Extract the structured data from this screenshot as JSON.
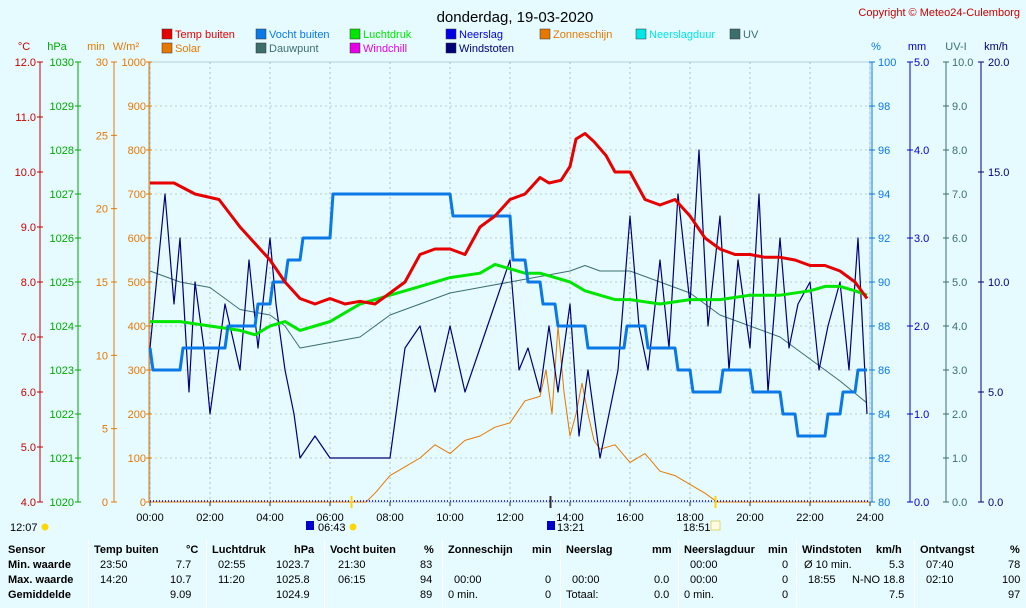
{
  "title": "donderdag, 19-03-2020",
  "copyright": "Copyright © Meteo24-Culemborg",
  "colors": {
    "temp": "#e60000",
    "humidity": "#0a78e6",
    "pressure": "#00e600",
    "rain": "#0000e6",
    "sunshine": "#e67800",
    "rainduration": "#00e6e6",
    "uv": "#3c6e6e",
    "solar": "#e67800",
    "dewpoint": "#3c6e6e",
    "windchill": "#e600e6",
    "gust": "#000078"
  },
  "legend": [
    {
      "label": "Temp buiten",
      "color": "#e60000"
    },
    {
      "label": "Vocht buiten",
      "color": "#0a78e6"
    },
    {
      "label": "Luchtdruk",
      "color": "#00e600"
    },
    {
      "label": "Neerslag",
      "color": "#0000e6"
    },
    {
      "label": "Zonneschijn",
      "color": "#e67800"
    },
    {
      "label": "Neerslagduur",
      "color": "#00e6e6"
    },
    {
      "label": "UV",
      "color": "#3c6e6e"
    },
    {
      "label": "Solar",
      "color": "#e67800"
    },
    {
      "label": "Dauwpunt",
      "color": "#3c6e6e"
    },
    {
      "label": "Windchill",
      "color": "#e600e6"
    },
    {
      "label": "Windstoten",
      "color": "#000078"
    }
  ],
  "axes": {
    "left_units": [
      "°C",
      "hPa",
      "min",
      "W/m²"
    ],
    "right_units": [
      "%",
      "mm",
      "UV-I",
      "km/h"
    ],
    "temp_ticks": [
      "4.0",
      "5.0",
      "6.0",
      "7.0",
      "8.0",
      "9.0",
      "10.0",
      "11.0",
      "12.0"
    ],
    "hpa_ticks": [
      "1020",
      "1021",
      "1022",
      "1023",
      "1024",
      "1025",
      "1026",
      "1027",
      "1028",
      "1029",
      "1030"
    ],
    "min_ticks": [
      "0",
      "5",
      "10",
      "15",
      "20",
      "25",
      "30"
    ],
    "solar_ticks": [
      "0",
      "100",
      "200",
      "300",
      "400",
      "500",
      "600",
      "700",
      "800",
      "900",
      "1000"
    ],
    "hum_ticks": [
      "80",
      "82",
      "84",
      "86",
      "88",
      "90",
      "92",
      "94",
      "96",
      "98",
      "100"
    ],
    "mm_ticks": [
      "0.0",
      "1.0",
      "2.0",
      "3.0",
      "4.0",
      "5.0"
    ],
    "uv_ticks": [
      "0.0",
      "1.0",
      "2.0",
      "3.0",
      "4.0",
      "5.0",
      "6.0",
      "7.0",
      "8.0",
      "9.0",
      "10.0"
    ],
    "kmh_ticks": [
      "0.0",
      "5.0",
      "10.0",
      "15.0",
      "20.0"
    ],
    "time_ticks": [
      "00:00",
      "02:00",
      "04:00",
      "06:00",
      "08:00",
      "10:00",
      "12:00",
      "14:00",
      "16:00",
      "18:00",
      "20:00",
      "22:00",
      "24:00"
    ]
  },
  "markers": {
    "now": "12:07",
    "sunrise": "06:43",
    "noon": "13:21",
    "sunset": "18:51"
  },
  "chart_data": {
    "type": "line",
    "x_unit": "hours",
    "xlim": [
      0,
      24
    ],
    "series": [
      {
        "name": "Temp buiten",
        "unit": "°C",
        "ylim": [
          4,
          12
        ],
        "x": [
          0,
          0.8,
          1.5,
          2.3,
          3,
          3.5,
          4,
          4.5,
          5,
          5.5,
          6,
          6.5,
          7,
          7.5,
          8,
          8.5,
          9,
          9.5,
          10,
          10.5,
          11,
          11.5,
          12,
          12.5,
          13,
          13.3,
          13.7,
          14,
          14.2,
          14.5,
          14.8,
          15.2,
          15.5,
          16,
          16.5,
          17,
          17.5,
          18,
          18.5,
          19,
          19.5,
          20,
          20.5,
          21,
          21.5,
          22,
          22.5,
          23,
          23.5,
          23.9
        ],
        "y": [
          9.8,
          9.8,
          9.6,
          9.5,
          9.0,
          8.7,
          8.4,
          8.0,
          7.7,
          7.6,
          7.7,
          7.6,
          7.65,
          7.6,
          7.8,
          8.0,
          8.5,
          8.6,
          8.6,
          8.5,
          9.0,
          9.2,
          9.5,
          9.6,
          9.9,
          9.8,
          9.85,
          10.1,
          10.6,
          10.7,
          10.55,
          10.3,
          10.0,
          10.0,
          9.5,
          9.4,
          9.5,
          9.2,
          8.8,
          8.6,
          8.5,
          8.5,
          8.45,
          8.45,
          8.4,
          8.3,
          8.3,
          8.2,
          8.0,
          7.7
        ]
      },
      {
        "name": "Vocht buiten",
        "unit": "%",
        "ylim": [
          80,
          100
        ],
        "x": [
          0,
          0.1,
          0.2,
          1.0,
          1.1,
          2.5,
          2.6,
          3.5,
          3.6,
          4.0,
          4.1,
          4.5,
          4.6,
          5.0,
          5.1,
          6.0,
          6.1,
          7.0,
          7.1,
          8.0,
          9.0,
          10.0,
          10.1,
          11.0,
          11.1,
          12.0,
          12.1,
          12.5,
          12.6,
          13.0,
          13.1,
          13.5,
          13.6,
          14.0,
          14.1,
          14.5,
          14.6,
          15.0,
          15.1,
          15.8,
          15.9,
          16.5,
          16.6,
          17.5,
          17.6,
          18.0,
          18.1,
          19.0,
          19.1,
          20.0,
          20.1,
          21.0,
          21.1,
          21.5,
          21.6,
          22.5,
          22.6,
          23.0,
          23.1,
          23.5,
          23.6,
          23.9
        ],
        "y": [
          87,
          86,
          86,
          86,
          87,
          87,
          88,
          88,
          89,
          89,
          90,
          90,
          91,
          91,
          92,
          92,
          94,
          94,
          94,
          94,
          94,
          94,
          93,
          93,
          93,
          93,
          91,
          91,
          90,
          90,
          89,
          89,
          88,
          88,
          88,
          88,
          87,
          87,
          87,
          87,
          88,
          88,
          87,
          87,
          86,
          86,
          85,
          85,
          86,
          86,
          85,
          85,
          84,
          84,
          83,
          83,
          84,
          84,
          85,
          85,
          86,
          86
        ]
      },
      {
        "name": "Luchtdruk",
        "unit": "hPa",
        "ylim": [
          1020,
          1030
        ],
        "x": [
          0,
          1,
          2,
          3,
          3.5,
          4,
          4.5,
          5,
          5.5,
          6,
          7,
          8,
          9,
          10,
          11,
          11.5,
          12,
          12.5,
          13,
          13.5,
          14,
          14.5,
          15,
          15.5,
          16,
          17,
          18,
          19,
          20,
          21,
          22,
          22.5,
          23,
          23.5,
          23.9
        ],
        "y": [
          1024.1,
          1024.1,
          1024.0,
          1023.9,
          1023.8,
          1024.0,
          1024.1,
          1023.9,
          1024.0,
          1024.1,
          1024.5,
          1024.7,
          1024.9,
          1025.1,
          1025.2,
          1025.4,
          1025.3,
          1025.2,
          1025.2,
          1025.1,
          1025.0,
          1024.8,
          1024.7,
          1024.6,
          1024.6,
          1024.5,
          1024.6,
          1024.6,
          1024.7,
          1024.7,
          1024.8,
          1024.9,
          1024.9,
          1024.8,
          1024.7
        ]
      },
      {
        "name": "Windstoten",
        "unit": "km/h",
        "ylim": [
          0,
          20
        ],
        "x": [
          0,
          0.5,
          0.8,
          1.0,
          1.3,
          1.5,
          1.8,
          2.0,
          2.5,
          3.0,
          3.3,
          3.6,
          4.0,
          4.2,
          4.5,
          4.8,
          5.0,
          5.5,
          6.0,
          6.5,
          7.0,
          7.5,
          8.0,
          8.5,
          9.0,
          9.5,
          10.0,
          10.5,
          11.0,
          11.5,
          12.0,
          12.3,
          12.6,
          13.0,
          13.3,
          13.6,
          14.0,
          14.3,
          14.6,
          15.0,
          15.3,
          15.6,
          16.0,
          16.3,
          16.6,
          17.0,
          17.3,
          17.6,
          18.0,
          18.3,
          18.6,
          19.0,
          19.3,
          19.6,
          20.0,
          20.3,
          20.6,
          21.0,
          21.3,
          21.6,
          22.0,
          22.3,
          22.6,
          23.0,
          23.3,
          23.6,
          23.9
        ],
        "y": [
          7,
          14,
          9,
          12,
          5,
          10,
          7,
          4,
          9,
          6,
          11,
          7,
          12,
          9,
          6,
          4,
          2,
          3,
          2,
          2,
          2,
          2,
          2,
          7,
          8,
          5,
          8,
          5,
          7,
          9,
          11,
          6,
          7,
          5,
          8,
          5,
          9,
          3,
          6,
          2,
          4,
          6,
          13,
          8,
          6,
          11,
          7,
          14,
          9,
          16,
          8,
          13,
          6,
          11,
          7,
          14,
          5,
          12,
          7,
          9,
          10,
          6,
          8,
          10,
          6,
          12,
          4
        ]
      },
      {
        "name": "Solar",
        "unit": "W/m²",
        "ylim": [
          0,
          1000
        ],
        "x": [
          0,
          7.2,
          7.5,
          8,
          8.5,
          9,
          9.5,
          10,
          10.5,
          11,
          11.5,
          12,
          12.5,
          13,
          13.2,
          13.4,
          13.6,
          13.8,
          14,
          14.2,
          14.4,
          14.6,
          14.8,
          15,
          15.5,
          16,
          16.5,
          17,
          17.5,
          18,
          18.5,
          18.9,
          24
        ],
        "y": [
          0,
          0,
          20,
          60,
          80,
          100,
          130,
          110,
          140,
          150,
          170,
          180,
          230,
          240,
          300,
          200,
          400,
          250,
          150,
          200,
          270,
          200,
          140,
          120,
          130,
          90,
          110,
          70,
          60,
          40,
          20,
          0,
          0
        ]
      },
      {
        "name": "Dauwpunt",
        "unit": "°C",
        "ylim": [
          4,
          12
        ],
        "x": [
          0,
          1,
          2,
          3,
          4,
          4.5,
          5,
          6,
          7,
          8,
          9,
          10,
          11,
          12,
          13,
          14,
          14.5,
          15,
          16,
          17,
          18,
          19,
          20,
          21,
          22,
          23,
          23.9
        ],
        "y": [
          8.2,
          8.0,
          7.9,
          7.5,
          7.4,
          7.2,
          6.8,
          6.9,
          7.0,
          7.4,
          7.6,
          7.8,
          7.9,
          8.0,
          8.1,
          8.2,
          8.3,
          8.2,
          8.2,
          8.0,
          7.8,
          7.4,
          7.2,
          7.0,
          6.6,
          6.2,
          5.8
        ]
      }
    ]
  },
  "table": {
    "headers": {
      "sensor": "Sensor",
      "temp": "Temp buiten",
      "temp_u": "°C",
      "press": "Luchtdruk",
      "press_u": "hPa",
      "hum": "Vocht buiten",
      "hum_u": "%",
      "sun": "Zonneschijn",
      "sun_u": "min",
      "rain": "Neerslag",
      "rain_u": "mm",
      "raindur": "Neerslagduur",
      "raindur_u": "min",
      "gust": "Windstoten",
      "gust_u": "km/h",
      "solar": "Ontvangst",
      "solar_u": "%"
    },
    "row_labels": [
      "Min. waarde",
      "Max. waarde",
      "Gemiddelde"
    ],
    "temp": [
      [
        "23:50",
        "7.7"
      ],
      [
        "14:20",
        "10.7"
      ],
      [
        "",
        "9.09"
      ]
    ],
    "press": [
      [
        "02:55",
        "1023.7"
      ],
      [
        "11:20",
        "1025.8"
      ],
      [
        "",
        "1024.9"
      ]
    ],
    "hum": [
      [
        "21:30",
        "83"
      ],
      [
        "06:15",
        "94"
      ],
      [
        "",
        "89"
      ]
    ],
    "sun": [
      [
        "",
        ""
      ],
      [
        "00:00",
        "0"
      ],
      [
        "0 min.",
        "0"
      ]
    ],
    "rain": [
      [
        "",
        ""
      ],
      [
        "00:00",
        "0.0"
      ],
      [
        "Totaal:",
        "0.0"
      ]
    ],
    "raindur": [
      [
        "00:00",
        "0"
      ],
      [
        "00:00",
        "0"
      ],
      [
        "0 min.",
        "0"
      ]
    ],
    "gust": [
      [
        "Ø 10 min.",
        "5.3"
      ],
      [
        "18:55",
        "N-NO 18.8"
      ],
      [
        "",
        "7.5"
      ]
    ],
    "solar": [
      [
        "07:40",
        "78"
      ],
      [
        "02:10",
        "100"
      ],
      [
        "",
        "97"
      ]
    ]
  }
}
